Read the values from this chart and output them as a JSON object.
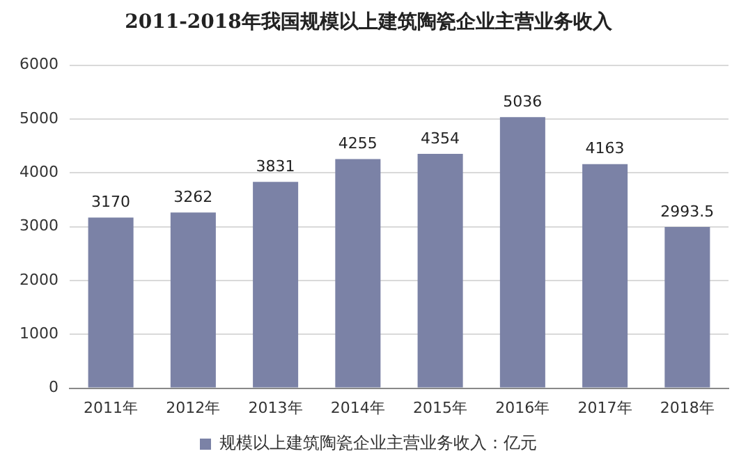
{
  "chart_data": {
    "type": "bar",
    "title": "2011-2018年我国规模以上建筑陶瓷企业主营业务收入",
    "categories": [
      "2011年",
      "2012年",
      "2013年",
      "2014年",
      "2015年",
      "2016年",
      "2017年",
      "2018年"
    ],
    "series": [
      {
        "name": "规模以上建筑陶瓷企业主营业务收入：亿元",
        "color": "#7b82a6",
        "values": [
          3170,
          3262,
          3831,
          4255,
          4354,
          5036,
          4163,
          2993.5
        ]
      }
    ],
    "ylim": [
      0,
      6000
    ],
    "yticks": [
      0,
      1000,
      2000,
      3000,
      4000,
      5000,
      6000
    ],
    "grid": "y",
    "legend": "bottom",
    "data_labels": true
  }
}
